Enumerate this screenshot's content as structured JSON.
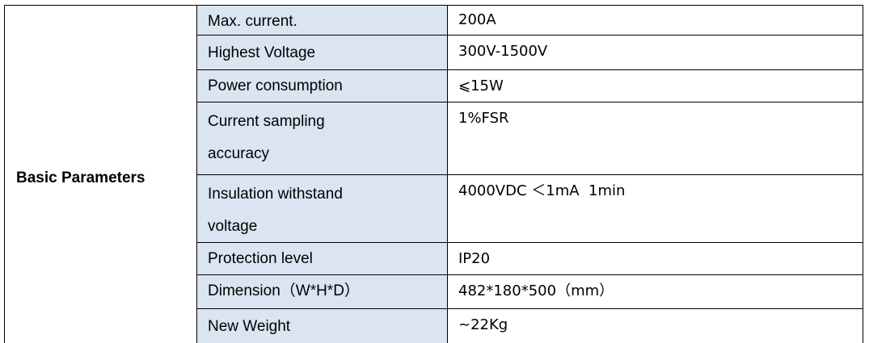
{
  "table": {
    "group": "Basic Parameters",
    "rows": [
      [
        "Max. current.",
        "200A"
      ],
      [
        "Highest Voltage",
        "300V-1500V"
      ],
      [
        "Power consumption",
        "⩽15W"
      ],
      [
        "Current sampling accuracy",
        "1%FSR"
      ],
      [
        "Insulation withstand voltage",
        "4000VDC ＜1mA  1min"
      ],
      [
        "Protection level",
        "IP20"
      ],
      [
        "Dimension（W*H*D）",
        "482*180*500（mm）"
      ],
      [
        "New Weight",
        "~22Kg"
      ]
    ]
  }
}
